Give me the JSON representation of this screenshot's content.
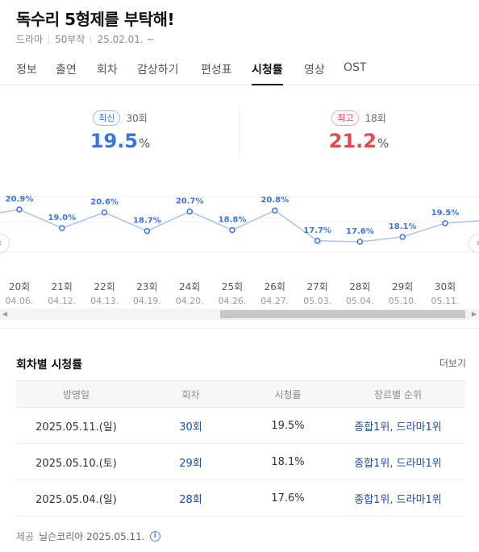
{
  "header": {
    "title": "독수리 5형제를 부탁해!",
    "genre": "드라마",
    "episodes": "50부작",
    "air_date": "25.02.01. ~"
  },
  "tabs": [
    {
      "label": "정보"
    },
    {
      "label": "출연"
    },
    {
      "label": "회차"
    },
    {
      "label": "감상하기"
    },
    {
      "label": "편성표"
    },
    {
      "label": "시청률"
    },
    {
      "label": "영상"
    },
    {
      "label": "OST"
    }
  ],
  "active_tab": "시청률",
  "highlights": {
    "latest": {
      "badge": "최신",
      "episode": "30회",
      "value": "19.5",
      "unit": "%"
    },
    "best": {
      "badge": "최고",
      "episode": "18회",
      "value": "21.2",
      "unit": "%"
    }
  },
  "chart_data": {
    "type": "line",
    "x": [
      "20회",
      "21회",
      "22회",
      "23회",
      "24회",
      "25회",
      "26회",
      "27회",
      "28회",
      "29회",
      "30회"
    ],
    "dates": [
      "04.06.",
      "04.12.",
      "04.13.",
      "04.19.",
      "04.20.",
      "04.26.",
      "04.27.",
      "05.03.",
      "05.04.",
      "05.10.",
      "05.11."
    ],
    "values": [
      20.9,
      19.0,
      20.6,
      18.7,
      20.7,
      18.8,
      20.8,
      17.7,
      17.6,
      18.1,
      19.5
    ],
    "labels": [
      "20.9%",
      "19.0%",
      "20.6%",
      "18.7%",
      "20.7%",
      "18.8%",
      "20.8%",
      "17.7%",
      "17.6%",
      "18.1%",
      "19.5%"
    ],
    "color": "#3b74e0"
  },
  "nav": {
    "prev": "‹",
    "next": "›"
  },
  "scroll": {
    "left": "◀",
    "right": "▶"
  },
  "table": {
    "title": "회차별 시청률",
    "more": "더보기",
    "headers": [
      "방영일",
      "회차",
      "시청률",
      "장르별 순위"
    ],
    "rows": [
      {
        "date": "2025.05.11.(일)",
        "episode": "30회",
        "rating": "19.5%",
        "rank": "종합1위, 드라마1위"
      },
      {
        "date": "2025.05.10.(토)",
        "episode": "29회",
        "rating": "18.1%",
        "rank": "종합1위, 드라마1위"
      },
      {
        "date": "2025.05.04.(일)",
        "episode": "28회",
        "rating": "17.6%",
        "rank": "종합1위, 드라마1위"
      }
    ]
  },
  "footer": {
    "label": "제공",
    "provider": "닐슨코리아 2025.05.11.",
    "info": "i"
  }
}
